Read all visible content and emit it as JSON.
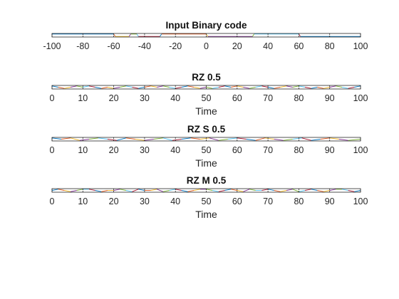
{
  "figure": {
    "background": "#ffffff",
    "axes_color": "#262626",
    "series_colors": [
      "#0072BD",
      "#D95319",
      "#EDB120",
      "#7E2F8E",
      "#77AC30",
      "#4DBEEE",
      "#A2142F"
    ]
  },
  "chart_data": [
    {
      "type": "line",
      "title": "Input Binary code",
      "xlabel": "",
      "ylabel": "",
      "xlim": [
        -100,
        100
      ],
      "ylim": [
        -1.5,
        1.5
      ],
      "xticks": [
        -100,
        -80,
        -60,
        -40,
        -20,
        0,
        20,
        40,
        60,
        80,
        100
      ],
      "grid": false,
      "values_note": "",
      "series": [
        {
          "x": [
            -100,
            -60,
            -59,
            -50,
            -49,
            -45,
            -44,
            -30,
            -29,
            0,
            1,
            30,
            31,
            60,
            61,
            100
          ],
          "y": [
            1,
            1,
            -1,
            -1,
            1,
            1,
            -1,
            -1,
            1,
            1,
            -1,
            -1,
            1,
            1,
            -1,
            -1
          ]
        }
      ]
    },
    {
      "type": "line",
      "title": "RZ 0.5",
      "xlabel": "Time",
      "ylabel": "",
      "xlim": [
        0,
        100
      ],
      "ylim": [
        -1.5,
        1.5
      ],
      "xticks": [
        0,
        10,
        20,
        30,
        40,
        50,
        60,
        70,
        80,
        90,
        100
      ],
      "grid": false,
      "series": [
        {
          "x": [
            0,
            2,
            4,
            6,
            8,
            10,
            12,
            14,
            16,
            18,
            20,
            22,
            24,
            26,
            28,
            30,
            32,
            34,
            36,
            38,
            40,
            42,
            44,
            46,
            48,
            50,
            52,
            54,
            56,
            58,
            60,
            62,
            64,
            66,
            68,
            70,
            72,
            74,
            76,
            78,
            80,
            82,
            84,
            86,
            88,
            90,
            92,
            94,
            96,
            98,
            100
          ],
          "y": [
            1,
            0,
            -1,
            0,
            1,
            0,
            1,
            0,
            -1,
            0,
            -1,
            0,
            1,
            0,
            -1,
            0,
            1,
            0,
            1,
            0,
            -1,
            0,
            1,
            0,
            -1,
            0,
            -1,
            0,
            1,
            0,
            1,
            0,
            -1,
            0,
            1,
            0,
            -1,
            0,
            1,
            0,
            1,
            0,
            -1,
            0,
            -1,
            0,
            1,
            0,
            -1,
            0,
            1
          ]
        }
      ]
    },
    {
      "type": "line",
      "title": "RZ S 0.5",
      "xlabel": "Time",
      "ylabel": "",
      "xlim": [
        0,
        100
      ],
      "ylim": [
        -1.5,
        1.5
      ],
      "xticks": [
        0,
        10,
        20,
        30,
        40,
        50,
        60,
        70,
        80,
        90,
        100
      ],
      "grid": false,
      "series": [
        {
          "x": [
            0,
            3,
            6,
            9,
            12,
            15,
            18,
            21,
            24,
            27,
            30,
            33,
            36,
            39,
            42,
            45,
            48,
            51,
            54,
            57,
            60,
            63,
            66,
            69,
            72,
            75,
            78,
            81,
            84,
            87,
            90,
            93,
            96,
            100
          ],
          "y": [
            1,
            0,
            1,
            -1,
            0,
            1,
            0,
            -1,
            1,
            0,
            -1,
            0,
            1,
            -1,
            0,
            1,
            0,
            1,
            -1,
            0,
            1,
            0,
            -1,
            1,
            0,
            -1,
            0,
            1,
            -1,
            0,
            1,
            0,
            -1,
            0
          ]
        }
      ]
    },
    {
      "type": "line",
      "title": "RZ M 0.5",
      "xlabel": "Time",
      "ylabel": "",
      "xlim": [
        0,
        100
      ],
      "ylim": [
        -1.5,
        1.5
      ],
      "xticks": [
        0,
        10,
        20,
        30,
        40,
        50,
        60,
        70,
        80,
        90,
        100
      ],
      "grid": false,
      "series": [
        {
          "x": [
            0,
            2,
            4,
            6,
            8,
            10,
            12,
            14,
            16,
            18,
            20,
            22,
            24,
            26,
            28,
            30,
            32,
            34,
            36,
            38,
            40,
            42,
            44,
            46,
            48,
            50,
            52,
            54,
            56,
            58,
            60,
            62,
            64,
            66,
            68,
            70,
            72,
            74,
            76,
            78,
            80,
            82,
            84,
            86,
            88,
            90,
            92,
            94,
            96,
            98,
            100
          ],
          "y": [
            0,
            1,
            0,
            -1,
            0,
            1,
            1,
            0,
            -1,
            0,
            0,
            1,
            0,
            -1,
            1,
            0,
            0,
            1,
            -1,
            0,
            1,
            0,
            -1,
            0,
            1,
            1,
            0,
            -1,
            0,
            1,
            0,
            -1,
            1,
            0,
            0,
            1,
            0,
            -1,
            0,
            1,
            -1,
            0,
            1,
            0,
            -1,
            0,
            1,
            1,
            0,
            -1,
            0
          ]
        }
      ]
    }
  ]
}
